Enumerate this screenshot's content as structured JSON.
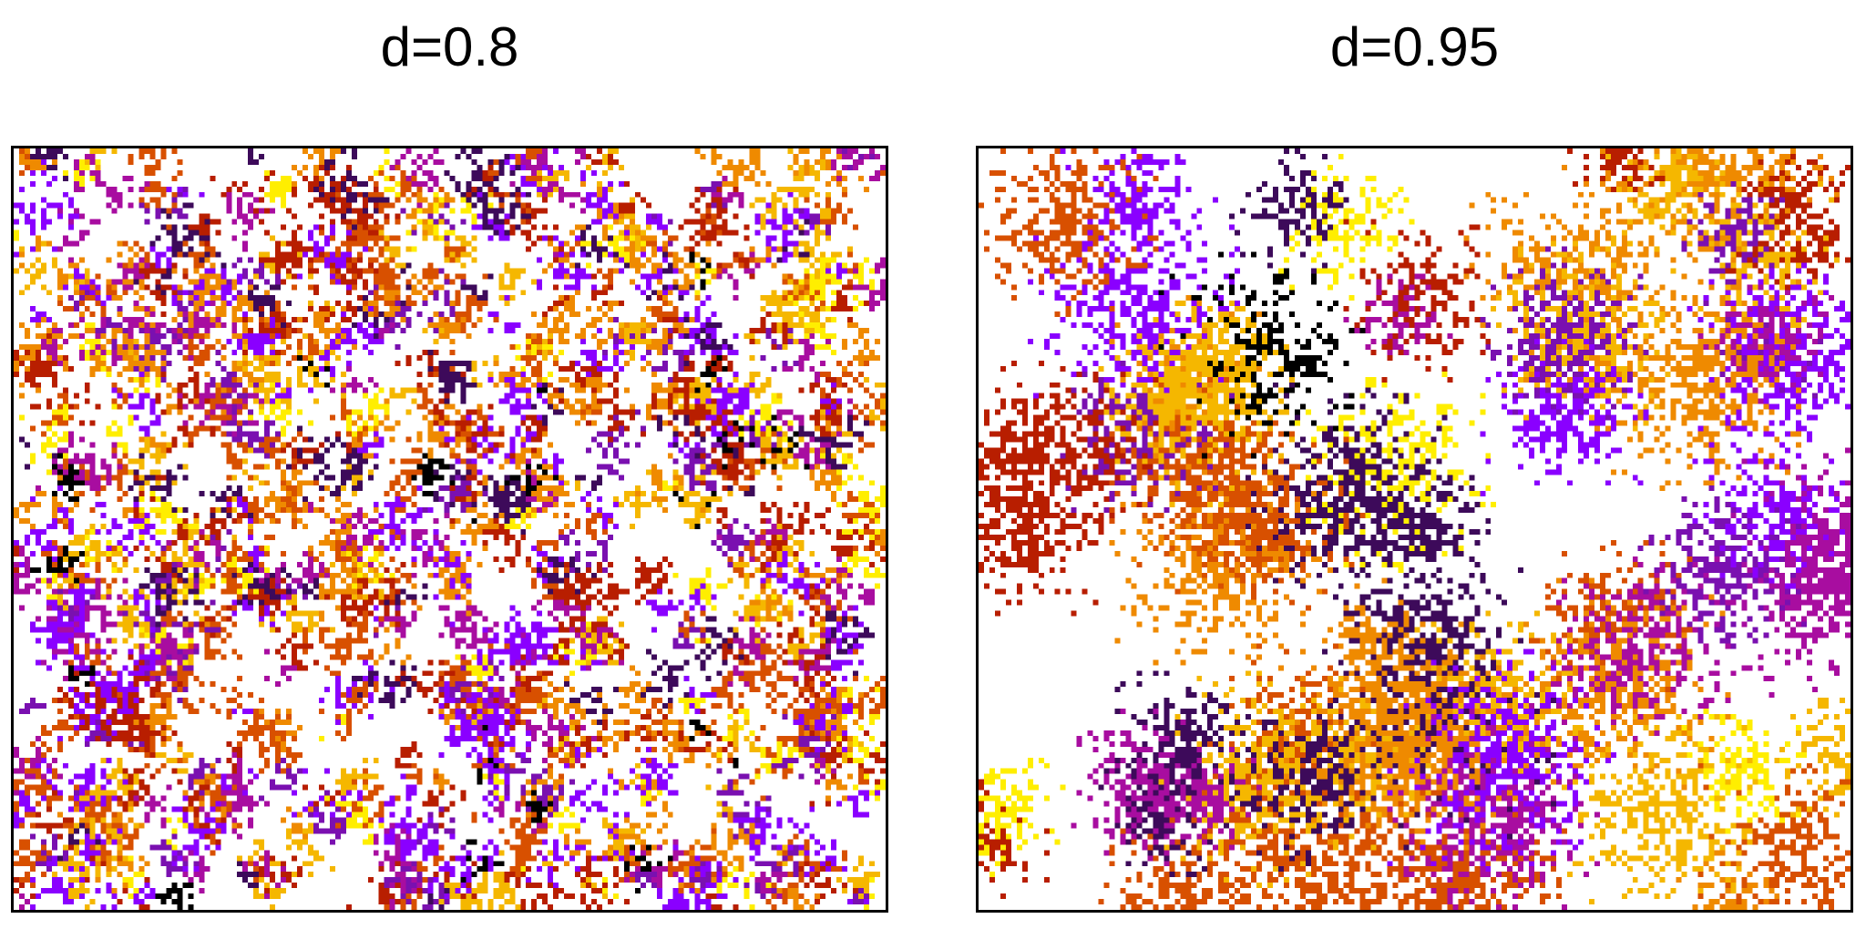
{
  "panels": [
    {
      "title": "d=0.8",
      "d": 0.8
    },
    {
      "title": "d=0.95",
      "d": 0.95
    }
  ],
  "palette": [
    "#000000",
    "#3d0a5a",
    "#7a10b0",
    "#8a00ff",
    "#a80da0",
    "#b81e00",
    "#d85000",
    "#ef8a00",
    "#f5b700",
    "#ffee00"
  ],
  "background_color": "#ffffff"
}
